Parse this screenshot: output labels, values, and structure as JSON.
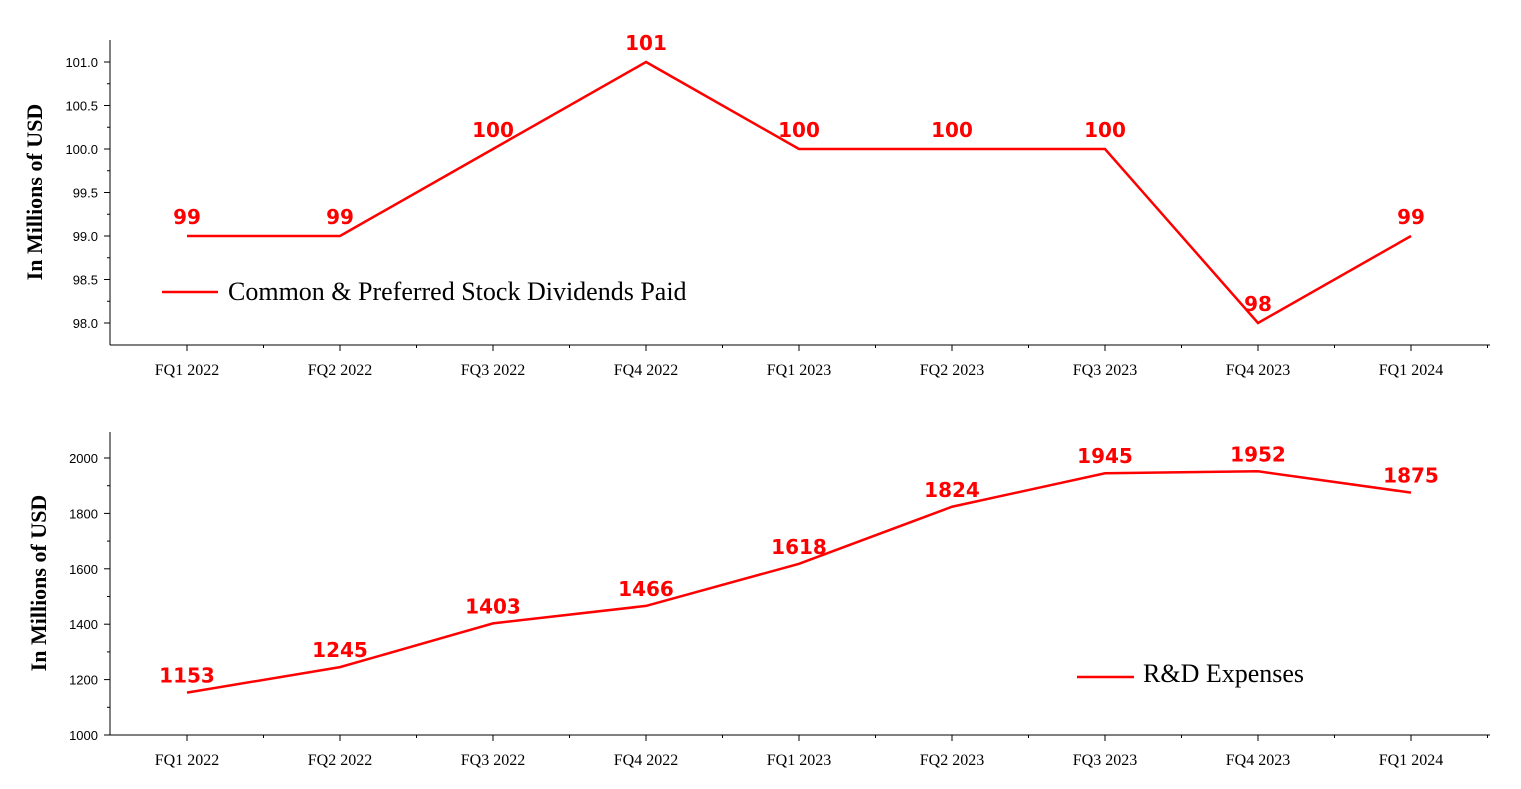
{
  "colors": {
    "series": "#ff0000",
    "axis": "#000000"
  },
  "chart_data": [
    {
      "type": "line",
      "categories": [
        "FQ1 2022",
        "FQ2 2022",
        "FQ3 2022",
        "FQ4 2022",
        "FQ1 2023",
        "FQ2 2023",
        "FQ3 2023",
        "FQ4 2023",
        "FQ1 2024"
      ],
      "series": [
        {
          "name": "Common & Preferred Stock Dividends Paid",
          "values": [
            99,
            99,
            100,
            101,
            100,
            100,
            100,
            98,
            99
          ]
        }
      ],
      "data_labels": [
        "99",
        "99",
        "100",
        "101",
        "100",
        "100",
        "100",
        "98",
        "99"
      ],
      "ylabel": "In Millions of USD",
      "ylim": [
        97.75,
        101.25
      ],
      "yticks": [
        98.0,
        98.5,
        99.0,
        99.5,
        100.0,
        100.5,
        101.0
      ],
      "ytick_labels": [
        "98.0",
        "98.5",
        "99.0",
        "99.5",
        "100.0",
        "100.5",
        "101.0"
      ],
      "legend_position": "bottom-left",
      "grid": false
    },
    {
      "type": "line",
      "categories": [
        "FQ1 2022",
        "FQ2 2022",
        "FQ3 2022",
        "FQ4 2022",
        "FQ1 2023",
        "FQ2 2023",
        "FQ3 2023",
        "FQ4 2023",
        "FQ1 2024"
      ],
      "series": [
        {
          "name": "R&D Expenses",
          "values": [
            1153,
            1245,
            1403,
            1466,
            1618,
            1824,
            1945,
            1952,
            1875
          ]
        }
      ],
      "data_labels": [
        "1153",
        "1245",
        "1403",
        "1466",
        "1618",
        "1824",
        "1945",
        "1952",
        "1875"
      ],
      "ylabel": "In Millions of USD",
      "ylim": [
        1000,
        2100
      ],
      "yticks": [
        1000,
        1200,
        1400,
        1600,
        1800,
        2000
      ],
      "ytick_labels": [
        "1000",
        "1200",
        "1400",
        "1600",
        "1800",
        "2000"
      ],
      "legend_position": "bottom-right",
      "grid": false
    }
  ]
}
